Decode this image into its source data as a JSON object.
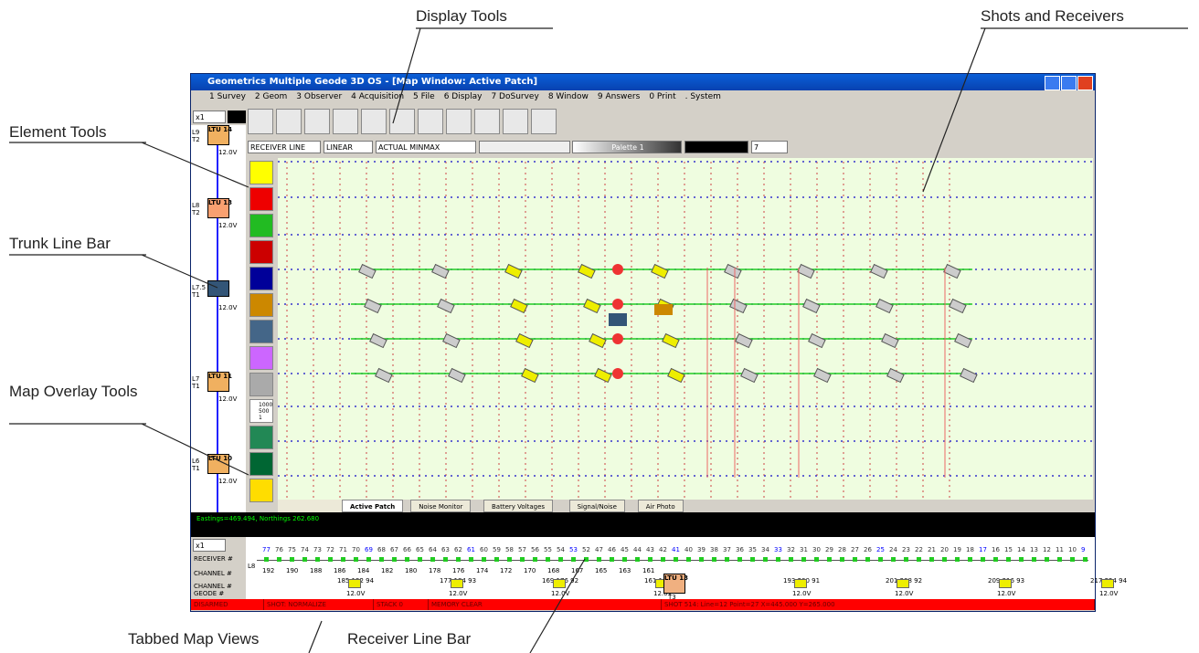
{
  "annotations": {
    "display_tools": "Display Tools",
    "shots_receivers": "Shots and Receivers",
    "element_tools": "Element Tools",
    "trunk_line_bar": "Trunk Line Bar",
    "map_overlay_tools": "Map Overlay Tools",
    "tabbed_map_views": "Tabbed Map Views",
    "receiver_line_bar": "Receiver Line Bar"
  },
  "window": {
    "title": "Geometrics Multiple Geode 3D OS - [Map Window: Active Patch]",
    "menu": [
      "1 Survey",
      "2 Geom",
      "3 Observer",
      "4 Acquisition",
      "5 File",
      "6 Display",
      "7 DoSurvey",
      "8 Window",
      "9 Answers",
      "0 Print",
      ". System"
    ],
    "zoom": "x1",
    "selects": [
      "RECEIVER LINE",
      "LINEAR",
      "ACTUAL MINMAX"
    ],
    "palette": "Palette 1",
    "spin": "7",
    "tabs": [
      "Active Patch",
      "Noise Monitor",
      "Battery Voltages",
      "Signal/Noise",
      "Air Photo"
    ],
    "coords": "Eastings=469.494, Northings 262.680",
    "status_bar": [
      "DISARMED",
      "SHOT: NORMALIZE",
      "STACK 0",
      "MEMORY CLEAR",
      "SHOT 514: Line=12 Point=27 X=445.000 Y=265.000"
    ],
    "trunk": [
      {
        "line": "L9 T2",
        "ltu": "LTU 14",
        "volt": "12.0V"
      },
      {
        "line": "L8 T2",
        "ltu": "LTU 13",
        "volt": "12.0V"
      },
      {
        "line": "L7.5 T1",
        "volt": "12.0V"
      },
      {
        "line": "L7 T1",
        "ltu": "LTU 11",
        "volt": "12.0V"
      },
      {
        "line": "L6 T1",
        "ltu": "LTU 10",
        "volt": "12.0V"
      }
    ],
    "overlay_scale": [
      "1000",
      "500",
      "1"
    ],
    "receiver_bar": {
      "zoom": "x1",
      "row_labels": [
        "RECEIVER #",
        "CHANNEL #",
        "CHANNEL # GEODE #"
      ],
      "line": "L8",
      "receivers": [
        "77",
        "76",
        "75",
        "74",
        "73",
        "72",
        "71",
        "70",
        "69",
        "68",
        "67",
        "66",
        "65",
        "64",
        "63",
        "62",
        "61",
        "60",
        "59",
        "58",
        "57",
        "56",
        "55",
        "54",
        "53",
        "52",
        "47",
        "46",
        "45",
        "44",
        "43",
        "42",
        "41",
        "40",
        "39",
        "38",
        "37",
        "36",
        "35",
        "34",
        "33",
        "32",
        "31",
        "30",
        "29",
        "28",
        "27",
        "26",
        "25",
        "24",
        "23",
        "22",
        "21",
        "20",
        "19",
        "18",
        "17",
        "16",
        "15",
        "14",
        "13",
        "12",
        "11",
        "10",
        "9"
      ],
      "channels": [
        "192",
        "190",
        "188",
        "186",
        "184",
        "182",
        "180",
        "178",
        "176",
        "174",
        "172",
        "170",
        "168",
        "167",
        "165",
        "163",
        "161"
      ],
      "geodes": [
        "185 192 94",
        "177 184 93",
        "169 176 92",
        "161 168 91",
        "193 200 91",
        "201 208 92",
        "209 216 93",
        "217 224 94"
      ],
      "geode_volt": "12.0V",
      "ltu": "LTU 13",
      "ltu_tag": "T3"
    }
  }
}
